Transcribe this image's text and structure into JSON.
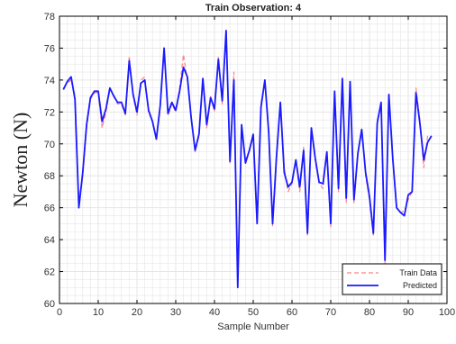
{
  "chart_data": {
    "type": "line",
    "title": "Train Observation: 4",
    "xlabel": "Sample Number",
    "ylabel": "Newton (N)",
    "xlim": [
      0,
      100
    ],
    "ylim": [
      60,
      78
    ],
    "xticks": [
      0,
      10,
      20,
      30,
      40,
      50,
      60,
      70,
      80,
      90,
      100
    ],
    "yticks": [
      60,
      62,
      64,
      66,
      68,
      70,
      72,
      74,
      76,
      78
    ],
    "grid": true,
    "legend_position": "bottom-right",
    "x": [
      1,
      2,
      3,
      4,
      5,
      6,
      7,
      8,
      9,
      10,
      11,
      12,
      13,
      14,
      15,
      16,
      17,
      18,
      19,
      20,
      21,
      22,
      23,
      24,
      25,
      26,
      27,
      28,
      29,
      30,
      31,
      32,
      33,
      34,
      35,
      36,
      37,
      38,
      39,
      40,
      41,
      42,
      43,
      44,
      45,
      46,
      47,
      48,
      49,
      50,
      51,
      52,
      53,
      54,
      55,
      56,
      57,
      58,
      59,
      60,
      61,
      62,
      63,
      64,
      65,
      66,
      67,
      68,
      69,
      70,
      71,
      72,
      73,
      74,
      75,
      76,
      77,
      78,
      79,
      80,
      81,
      82,
      83,
      84,
      85,
      86,
      87,
      88,
      89,
      90,
      91,
      92,
      93,
      94,
      95,
      96
    ],
    "series": [
      {
        "name": "Train Data",
        "color": "#ff8080",
        "style": "dashed",
        "values": [
          73.5,
          73.8,
          74.0,
          73.0,
          66.3,
          68.0,
          71.0,
          72.8,
          73.2,
          73.2,
          71.0,
          72.0,
          73.4,
          73.1,
          72.5,
          72.5,
          71.8,
          75.5,
          73.0,
          71.8,
          74.0,
          74.2,
          71.9,
          71.5,
          70.2,
          72.5,
          76.0,
          71.8,
          72.5,
          72.0,
          73.5,
          75.6,
          74.0,
          71.5,
          69.5,
          70.5,
          74.0,
          71.0,
          73.0,
          72.0,
          75.5,
          72.5,
          77.0,
          68.8,
          74.5,
          61.2,
          71.0,
          69.0,
          69.5,
          70.5,
          65.5,
          72.5,
          74.0,
          70.5,
          64.8,
          69.0,
          72.5,
          68.5,
          67.0,
          67.5,
          69.0,
          67.0,
          69.8,
          64.2,
          71.0,
          69.0,
          67.5,
          67.2,
          69.5,
          64.8,
          73.2,
          67.0,
          74.0,
          66.3,
          73.8,
          66.3,
          69.5,
          71.0,
          68.0,
          66.5,
          64.2,
          71.5,
          72.5,
          62.5,
          73.0,
          69.0,
          66.0,
          65.7,
          65.8,
          66.5,
          67.0,
          73.5,
          71.5,
          68.5,
          70.5,
          70.5
        ]
      },
      {
        "name": "Predicted",
        "color": "#1a1aff",
        "style": "solid",
        "values": [
          73.4,
          73.9,
          74.2,
          72.8,
          66.0,
          68.2,
          71.2,
          72.9,
          73.3,
          73.3,
          71.4,
          72.2,
          73.5,
          73.0,
          72.6,
          72.6,
          71.9,
          75.2,
          73.1,
          72.0,
          73.8,
          74.0,
          72.1,
          71.4,
          70.3,
          72.4,
          76.0,
          71.9,
          72.6,
          72.1,
          73.3,
          74.8,
          74.2,
          71.6,
          69.6,
          70.6,
          74.1,
          71.2,
          72.9,
          72.2,
          75.3,
          72.7,
          77.1,
          68.9,
          74.0,
          61.0,
          71.2,
          68.8,
          69.6,
          70.6,
          65.0,
          72.3,
          74.0,
          70.7,
          65.0,
          69.2,
          72.6,
          68.2,
          67.3,
          67.6,
          69.0,
          67.3,
          69.6,
          64.4,
          71.0,
          69.1,
          67.6,
          67.5,
          69.5,
          65.0,
          73.3,
          67.2,
          74.1,
          66.6,
          73.9,
          66.5,
          69.4,
          70.9,
          68.2,
          66.7,
          64.4,
          71.3,
          72.6,
          62.7,
          73.1,
          69.1,
          66.0,
          65.7,
          65.5,
          66.8,
          67.0,
          73.2,
          71.3,
          69.0,
          70.1,
          70.5
        ]
      }
    ]
  },
  "colors": {
    "background": "#ffffff",
    "plot_border": "#000000",
    "grid": "#e6e6e6"
  }
}
